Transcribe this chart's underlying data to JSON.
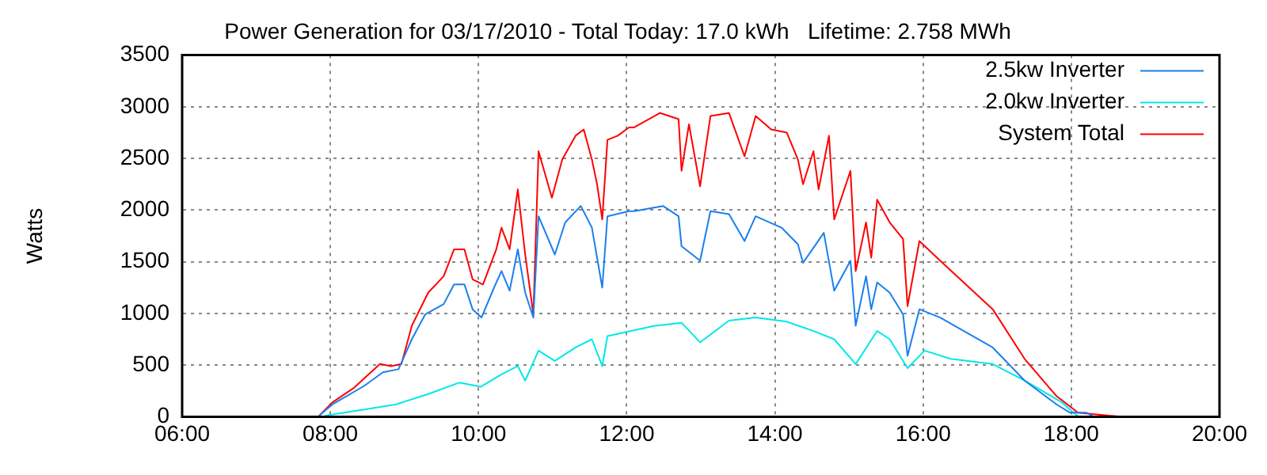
{
  "chart_data": {
    "type": "line",
    "title": "Power Generation for 03/17/2010 - Total Today: 17.0 kWh   Lifetime: 2.758 MWh",
    "ylabel": "Watts",
    "xlim": [
      6,
      20
    ],
    "xticks": [
      {
        "value": 6,
        "label": "06:00"
      },
      {
        "value": 8,
        "label": "08:00"
      },
      {
        "value": 10,
        "label": "10:00"
      },
      {
        "value": 12,
        "label": "12:00"
      },
      {
        "value": 14,
        "label": "14:00"
      },
      {
        "value": 16,
        "label": "16:00"
      },
      {
        "value": 18,
        "label": "18:00"
      },
      {
        "value": 20,
        "label": "20:00"
      }
    ],
    "ylim": [
      0,
      3500
    ],
    "yticks": [
      0,
      500,
      1000,
      1500,
      2000,
      2500,
      3000,
      3500
    ],
    "grid": true,
    "legend": "top right",
    "marker": "none",
    "line_style": "solid",
    "series": [
      {
        "name": "2.5kw Inverter",
        "color": "#1a7ff0",
        "x": [
          7.85,
          8.03,
          8.46,
          8.71,
          8.92,
          9.1,
          9.28,
          9.53,
          9.67,
          9.81,
          9.92,
          10.04,
          10.21,
          10.31,
          10.42,
          10.53,
          10.63,
          10.74,
          10.81,
          11.03,
          11.17,
          11.38,
          11.53,
          11.67,
          11.74,
          12.03,
          12.1,
          12.49,
          12.7,
          12.74,
          12.99,
          13.13,
          13.38,
          13.59,
          13.74,
          14.09,
          14.31,
          14.38,
          14.66,
          14.8,
          15.02,
          15.09,
          15.23,
          15.3,
          15.38,
          15.55,
          15.73,
          15.79,
          15.95,
          16.23,
          16.94,
          17.37,
          17.8,
          17.98,
          18.2,
          18.3
        ],
        "values": [
          10,
          120,
          300,
          430,
          460,
          750,
          990,
          1090,
          1280,
          1280,
          1040,
          960,
          1250,
          1410,
          1220,
          1620,
          1200,
          960,
          1940,
          1570,
          1880,
          2040,
          1830,
          1250,
          1940,
          1990,
          1990,
          2040,
          1940,
          1650,
          1510,
          1990,
          1960,
          1700,
          1940,
          1830,
          1670,
          1490,
          1780,
          1220,
          1510,
          880,
          1360,
          1040,
          1300,
          1200,
          990,
          590,
          1040,
          960,
          670,
          350,
          120,
          40,
          40,
          0
        ]
      },
      {
        "name": "2.0kw Inverter",
        "color": "#00e8e8",
        "x": [
          7.93,
          8.46,
          8.89,
          9.32,
          9.74,
          10.03,
          10.31,
          10.53,
          10.63,
          10.81,
          11.03,
          11.31,
          11.53,
          11.67,
          11.74,
          12.06,
          12.38,
          12.74,
          12.99,
          13.38,
          13.74,
          14.16,
          14.52,
          14.8,
          15.09,
          15.38,
          15.55,
          15.79,
          16.02,
          16.37,
          16.94,
          17.37,
          17.87,
          18.03,
          18.1
        ],
        "values": [
          10,
          70,
          120,
          220,
          330,
          290,
          410,
          490,
          350,
          640,
          540,
          670,
          750,
          490,
          780,
          830,
          880,
          910,
          720,
          930,
          960,
          920,
          830,
          750,
          510,
          830,
          750,
          470,
          640,
          560,
          510,
          350,
          140,
          40,
          0
        ]
      },
      {
        "name": "System Total",
        "color": "#ff0000",
        "x": [
          7.85,
          8.03,
          8.32,
          8.67,
          8.82,
          8.96,
          9.1,
          9.32,
          9.53,
          9.67,
          9.81,
          9.92,
          10.06,
          10.24,
          10.31,
          10.42,
          10.53,
          10.63,
          10.74,
          10.81,
          10.99,
          11.13,
          11.31,
          11.42,
          11.53,
          11.6,
          11.67,
          11.74,
          11.88,
          12.03,
          12.1,
          12.45,
          12.7,
          12.74,
          12.84,
          12.99,
          13.13,
          13.38,
          13.59,
          13.74,
          13.95,
          14.16,
          14.31,
          14.38,
          14.52,
          14.59,
          14.73,
          14.8,
          15.02,
          15.09,
          15.23,
          15.3,
          15.38,
          15.55,
          15.73,
          15.79,
          15.95,
          16.23,
          16.94,
          17.37,
          17.8,
          18.09,
          18.51,
          18.7
        ],
        "values": [
          10,
          140,
          280,
          510,
          490,
          510,
          880,
          1200,
          1360,
          1620,
          1620,
          1330,
          1280,
          1620,
          1830,
          1620,
          2200,
          1570,
          990,
          2570,
          2120,
          2490,
          2720,
          2780,
          2490,
          2250,
          1910,
          2680,
          2720,
          2800,
          2800,
          2940,
          2880,
          2380,
          2830,
          2230,
          2910,
          2940,
          2520,
          2910,
          2780,
          2750,
          2490,
          2250,
          2570,
          2200,
          2720,
          1910,
          2380,
          1410,
          1880,
          1540,
          2100,
          1880,
          1720,
          1070,
          1700,
          1510,
          1040,
          560,
          200,
          40,
          10,
          0
        ]
      }
    ]
  }
}
